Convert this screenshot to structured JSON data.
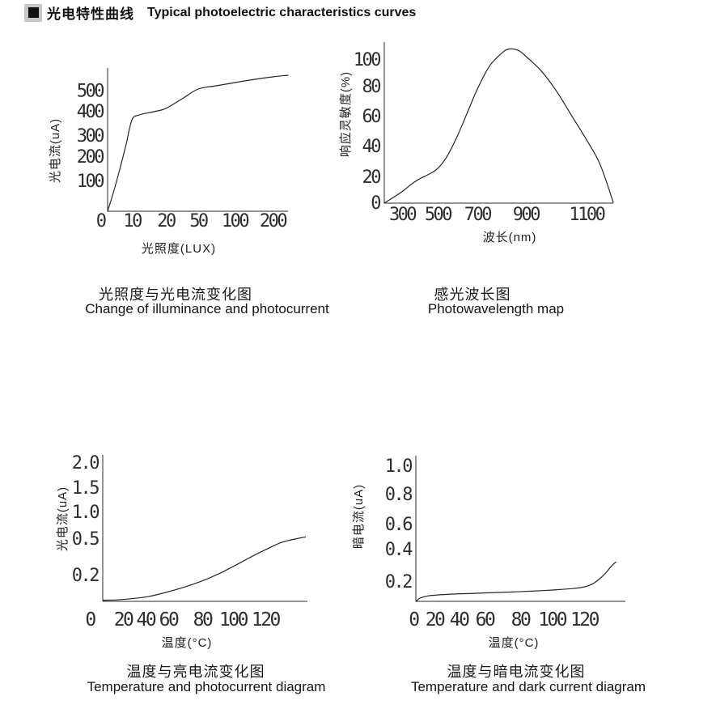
{
  "header": {
    "title_cn": "光电特性曲线",
    "title_en": "Typical photoelectric characteristics curves"
  },
  "colors": {
    "ink": "#1b1b1b",
    "bullet_bg": "#c6c6c6",
    "bullet_fg": "#111111"
  },
  "chart_data": [
    {
      "type": "line",
      "title_cn": "光照度与光电流变化图",
      "title_en": "Change of illuminance and photocurrent",
      "xlabel": "光照度(LUX)",
      "ylabel": "光电流(uA)",
      "x_tick_labels": [
        "0",
        "10",
        "20",
        "50",
        "100",
        "200"
      ],
      "y_tick_labels": [
        "100",
        "200",
        "300",
        "400",
        "500"
      ],
      "xlim": [
        0,
        230
      ],
      "ylim": [
        0,
        560
      ],
      "points": [
        [
          0,
          0
        ],
        [
          5,
          185
        ],
        [
          10,
          370
        ],
        [
          20,
          420
        ],
        [
          50,
          500
        ],
        [
          100,
          525
        ],
        [
          200,
          545
        ],
        [
          230,
          555
        ]
      ],
      "layout": {
        "size": [
          370,
          270
        ],
        "plot": {
          "x0": 93,
          "x1": 316,
          "top": 29,
          "bottom": 206
        },
        "tick_fs": 22,
        "xtick_fs": 22,
        "xtick_dy": 19,
        "y_ticks": [
          {
            "label": "100",
            "f": 0.215
          },
          {
            "label": "200",
            "f": 0.384
          },
          {
            "label": "300",
            "f": 0.531
          },
          {
            "label": "400",
            "f": 0.701
          },
          {
            "label": "500",
            "f": 0.845
          }
        ],
        "x_ticks": [
          {
            "label": "0",
            "f": -0.04
          },
          {
            "label": "10",
            "f": 0.135
          },
          {
            "label": "20",
            "f": 0.323
          },
          {
            "label": "50",
            "f": 0.502
          },
          {
            "label": "100",
            "f": 0.704
          },
          {
            "label": "200",
            "f": 0.915
          }
        ],
        "curve": [
          [
            0,
            0
          ],
          [
            0.036,
            0.147
          ],
          [
            0.072,
            0.316
          ],
          [
            0.103,
            0.469
          ],
          [
            0.135,
            0.638
          ],
          [
            0.175,
            0.672
          ],
          [
            0.256,
            0.695
          ],
          [
            0.323,
            0.718
          ],
          [
            0.413,
            0.785
          ],
          [
            0.502,
            0.853
          ],
          [
            0.605,
            0.876
          ],
          [
            0.704,
            0.898
          ],
          [
            0.816,
            0.921
          ],
          [
            0.915,
            0.938
          ],
          [
            1,
            0.949
          ]
        ],
        "ylabel_pos": [
          33,
          131
        ],
        "xlabel_pos": [
          181,
          257
        ]
      }
    },
    {
      "type": "line",
      "title_cn": "感光波长图",
      "title_en": "Photowavelength map",
      "xlabel": "波长(nm)",
      "ylabel": "响应灵敏度(%)",
      "x_tick_labels": [
        "300",
        "500",
        "700",
        "900",
        "1100"
      ],
      "y_tick_labels": [
        "0",
        "20",
        "40",
        "60",
        "80",
        "100"
      ],
      "xlim": [
        250,
        1200
      ],
      "ylim": [
        0,
        110
      ],
      "points": [
        [
          250,
          0
        ],
        [
          300,
          8
        ],
        [
          350,
          13
        ],
        [
          400,
          17
        ],
        [
          450,
          20
        ],
        [
          500,
          24
        ],
        [
          550,
          33
        ],
        [
          600,
          47
        ],
        [
          650,
          63
        ],
        [
          700,
          79
        ],
        [
          750,
          95
        ],
        [
          800,
          104
        ],
        [
          830,
          107
        ],
        [
          900,
          102
        ],
        [
          950,
          92
        ],
        [
          1000,
          78
        ],
        [
          1050,
          61
        ],
        [
          1100,
          44
        ],
        [
          1150,
          27
        ],
        [
          1200,
          0
        ]
      ],
      "layout": {
        "size": [
          400,
          275
        ],
        "plot": {
          "x0": 75,
          "x1": 358,
          "top": 12,
          "bottom": 211
        },
        "tick_fs": 22,
        "xtick_fs": 22,
        "xtick_dy": 21,
        "y_ticks": [
          {
            "label": "0",
            "f": 0.005
          },
          {
            "label": "20",
            "f": 0.166
          },
          {
            "label": "40",
            "f": 0.357
          },
          {
            "label": "60",
            "f": 0.543
          },
          {
            "label": "80",
            "f": 0.729
          },
          {
            "label": "100",
            "f": 0.894
          }
        ],
        "x_ticks": [
          {
            "label": "300",
            "f": 0.078
          },
          {
            "label": "500",
            "f": 0.233
          },
          {
            "label": "700",
            "f": 0.406
          },
          {
            "label": "900",
            "f": 0.618
          },
          {
            "label": "1100",
            "f": 0.883
          }
        ],
        "curve": [
          [
            0,
            0
          ],
          [
            0.078,
            0.072
          ],
          [
            0.117,
            0.116
          ],
          [
            0.155,
            0.152
          ],
          [
            0.194,
            0.179
          ],
          [
            0.233,
            0.215
          ],
          [
            0.276,
            0.295
          ],
          [
            0.32,
            0.42
          ],
          [
            0.363,
            0.563
          ],
          [
            0.406,
            0.707
          ],
          [
            0.459,
            0.85
          ],
          [
            0.512,
            0.93
          ],
          [
            0.544,
            0.957
          ],
          [
            0.586,
            0.948
          ],
          [
            0.618,
            0.912
          ],
          [
            0.684,
            0.823
          ],
          [
            0.751,
            0.698
          ],
          [
            0.817,
            0.546
          ],
          [
            0.883,
            0.394
          ],
          [
            0.942,
            0.242
          ],
          [
            1,
            0.005
          ]
        ],
        "ylabel_pos": [
          32,
          101
        ],
        "xlabel_pos": [
          230,
          258
        ]
      }
    },
    {
      "type": "line",
      "title_cn": "温度与亮电流变化图",
      "title_en": "Temperature and photocurrent diagram",
      "xlabel": "温度(°C)",
      "ylabel": "光电流(uA)",
      "x_tick_labels": [
        "0",
        "20",
        "40",
        "60",
        "80",
        "100",
        "120"
      ],
      "y_tick_labels": [
        "0.2",
        "0.5",
        "1.0",
        "1.5",
        "2.0"
      ],
      "xlim": [
        0,
        148
      ],
      "ylim": [
        0,
        2.1
      ],
      "points": [
        [
          0,
          0
        ],
        [
          20,
          0.01
        ],
        [
          40,
          0.03
        ],
        [
          60,
          0.08
        ],
        [
          80,
          0.15
        ],
        [
          100,
          0.26
        ],
        [
          120,
          0.4
        ],
        [
          135,
          0.5
        ]
      ],
      "layout": {
        "size": [
          360,
          265
        ],
        "plot": {
          "x0": 87,
          "x1": 340,
          "top": 17,
          "bottom": 198
        },
        "tick_fs": 22,
        "xtick_fs": 23,
        "xtick_dy": 30,
        "y_ticks": [
          {
            "label": "0.2",
            "f": 0.182
          },
          {
            "label": "0.5",
            "f": 0.431
          },
          {
            "label": "1.0",
            "f": 0.613
          },
          {
            "label": "1.5",
            "f": 0.779
          },
          {
            "label": "2.0",
            "f": 0.95
          }
        ],
        "x_ticks": [
          {
            "label": "0",
            "f": -0.063
          },
          {
            "label": "20",
            "f": 0.099
          },
          {
            "label": "40",
            "f": 0.209
          },
          {
            "label": "60",
            "f": 0.32
          },
          {
            "label": "80",
            "f": 0.486
          },
          {
            "label": "100",
            "f": 0.636
          },
          {
            "label": "120",
            "f": 0.794
          }
        ],
        "curve": [
          [
            0,
            0.008
          ],
          [
            0.07,
            0.01
          ],
          [
            0.14,
            0.018
          ],
          [
            0.22,
            0.032
          ],
          [
            0.3,
            0.058
          ],
          [
            0.4,
            0.098
          ],
          [
            0.486,
            0.14
          ],
          [
            0.57,
            0.19
          ],
          [
            0.636,
            0.237
          ],
          [
            0.72,
            0.3
          ],
          [
            0.794,
            0.352
          ],
          [
            0.88,
            0.405
          ],
          [
            0.99,
            0.44
          ]
        ],
        "ylabel_pos": [
          42,
          96
        ],
        "xlabel_pos": [
          191,
          254
        ]
      }
    },
    {
      "type": "line",
      "title_cn": "温度与暗电流变化图",
      "title_en": "Temperature and dark current diagram",
      "xlabel": "温度(°C)",
      "ylabel": "暗电流(uA)",
      "x_tick_labels": [
        "0",
        "20",
        "40",
        "60",
        "80",
        "100",
        "120"
      ],
      "y_tick_labels": [
        "0.2",
        "0.4",
        "0.6",
        "0.8",
        "1.0"
      ],
      "xlim": [
        0,
        150
      ],
      "ylim": [
        0,
        1.05
      ],
      "points": [
        [
          0,
          0
        ],
        [
          20,
          0.06
        ],
        [
          40,
          0.07
        ],
        [
          60,
          0.08
        ],
        [
          80,
          0.09
        ],
        [
          100,
          0.11
        ],
        [
          120,
          0.14
        ],
        [
          130,
          0.2
        ],
        [
          135,
          0.31
        ]
      ],
      "layout": {
        "size": [
          360,
          265
        ],
        "plot": {
          "x0": 84,
          "x1": 343,
          "top": 18,
          "bottom": 198
        },
        "tick_fs": 22,
        "xtick_fs": 23,
        "xtick_dy": 30,
        "y_ticks": [
          {
            "label": "0.2",
            "f": 0.139
          },
          {
            "label": "0.4",
            "f": 0.361
          },
          {
            "label": "0.6",
            "f": 0.533
          },
          {
            "label": "0.8",
            "f": 0.739
          },
          {
            "label": "1.0",
            "f": 0.933
          }
        ],
        "x_ticks": [
          {
            "label": "0",
            "f": -0.012
          },
          {
            "label": "20",
            "f": 0.089
          },
          {
            "label": "40",
            "f": 0.205
          },
          {
            "label": "60",
            "f": 0.328
          },
          {
            "label": "80",
            "f": 0.498
          },
          {
            "label": "100",
            "f": 0.649
          },
          {
            "label": "120",
            "f": 0.803
          }
        ],
        "curve": [
          [
            0,
            0
          ],
          [
            0.02,
            0.022
          ],
          [
            0.06,
            0.038
          ],
          [
            0.15,
            0.048
          ],
          [
            0.3,
            0.056
          ],
          [
            0.45,
            0.064
          ],
          [
            0.55,
            0.07
          ],
          [
            0.653,
            0.078
          ],
          [
            0.75,
            0.088
          ],
          [
            0.807,
            0.1
          ],
          [
            0.85,
            0.125
          ],
          [
            0.9,
            0.185
          ],
          [
            0.935,
            0.245
          ],
          [
            0.955,
            0.27
          ]
        ],
        "ylabel_pos": [
          18,
          93
        ],
        "xlabel_pos": [
          205,
          254
        ]
      }
    }
  ]
}
